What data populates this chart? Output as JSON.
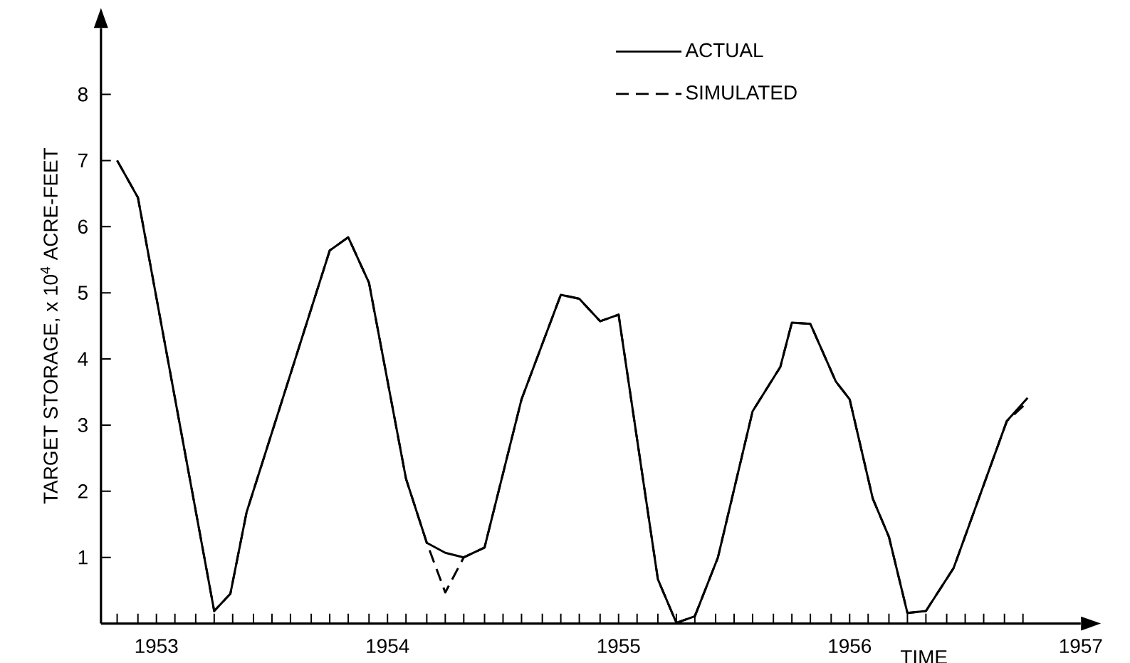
{
  "chart_data": {
    "type": "line",
    "xlabel": "TIME",
    "ylabel": "TARGET STORAGE, x 10$^{4}$ ACRE-FEET",
    "x": [
      1952.83,
      1952.92,
      1953.25,
      1953.32,
      1953.39,
      1953.75,
      1953.83,
      1953.92,
      1954.08,
      1954.17,
      1954.25,
      1954.33,
      1954.42,
      1954.58,
      1954.75,
      1954.83,
      1954.92,
      1955.0,
      1955.17,
      1955.25,
      1955.33,
      1955.43,
      1955.58,
      1955.7,
      1955.75,
      1955.83,
      1955.94,
      1956.0,
      1956.1,
      1956.17,
      1956.25,
      1956.33,
      1956.45,
      1956.68,
      1956.77
    ],
    "series": [
      {
        "name": "ACTUAL",
        "color": "#000000",
        "line_style": "solid",
        "values": [
          7.0,
          6.44,
          0.19,
          0.45,
          1.68,
          5.64,
          5.84,
          5.15,
          2.19,
          1.22,
          1.07,
          1.0,
          1.15,
          3.39,
          4.97,
          4.91,
          4.57,
          4.67,
          0.67,
          0.01,
          0.11,
          1.0,
          3.21,
          3.88,
          4.55,
          4.53,
          3.66,
          3.39,
          1.89,
          1.31,
          0.16,
          0.19,
          0.84,
          3.06,
          3.41
        ]
      },
      {
        "name": "SIMULATED",
        "color": "#000000",
        "line_style": "dashed",
        "values": [
          7.0,
          6.44,
          0.19,
          0.45,
          1.68,
          5.64,
          5.84,
          5.15,
          2.19,
          1.22,
          0.47,
          1.0,
          1.15,
          3.39,
          4.97,
          4.91,
          4.57,
          4.67,
          0.67,
          0.01,
          0.11,
          1.0,
          3.21,
          3.88,
          4.55,
          4.53,
          3.66,
          3.39,
          1.89,
          1.31,
          0.16,
          0.19,
          0.84,
          3.06,
          3.35
        ]
      }
    ],
    "xlim": [
      1952.76,
      1957.0
    ],
    "ylim": [
      0,
      9
    ],
    "yticks": [
      1,
      2,
      3,
      4,
      5,
      6,
      7,
      8
    ],
    "xticks": [
      1953,
      1954,
      1955,
      1956,
      1957,
      {
        "value": 1952.83,
        "label": null
      },
      {
        "value": 1952.92,
        "label": null
      },
      {
        "value": 1953.0,
        "label": null
      },
      {
        "value": 1953.08,
        "label": null
      },
      {
        "value": 1953.17,
        "label": null
      },
      {
        "value": 1953.25,
        "label": null
      },
      {
        "value": 1953.33,
        "label": null
      },
      {
        "value": 1953.42,
        "label": null
      },
      {
        "value": 1953.5,
        "label": null
      },
      {
        "value": 1953.58,
        "label": null
      },
      {
        "value": 1953.67,
        "label": null
      },
      {
        "value": 1953.75,
        "label": null
      },
      {
        "value": 1953.83,
        "label": null
      },
      {
        "value": 1953.92,
        "label": null
      },
      {
        "value": 1954.0,
        "label": null
      },
      {
        "value": 1954.08,
        "label": null
      },
      {
        "value": 1954.17,
        "label": null
      },
      {
        "value": 1954.25,
        "label": null
      },
      {
        "value": 1954.33,
        "label": null
      },
      {
        "value": 1954.42,
        "label": null
      },
      {
        "value": 1954.5,
        "label": null
      },
      {
        "value": 1954.58,
        "label": null
      },
      {
        "value": 1954.67,
        "label": null
      },
      {
        "value": 1954.75,
        "label": null
      },
      {
        "value": 1954.83,
        "label": null
      },
      {
        "value": 1954.92,
        "label": null
      },
      {
        "value": 1955.0,
        "label": null
      },
      {
        "value": 1955.08,
        "label": null
      },
      {
        "value": 1955.17,
        "label": null
      },
      {
        "value": 1955.25,
        "label": null
      },
      {
        "value": 1955.33,
        "label": null
      },
      {
        "value": 1955.42,
        "label": null
      },
      {
        "value": 1955.5,
        "label": null
      },
      {
        "value": 1955.58,
        "label": null
      },
      {
        "value": 1955.67,
        "label": null
      },
      {
        "value": 1955.75,
        "label": null
      },
      {
        "value": 1955.83,
        "label": null
      },
      {
        "value": 1955.92,
        "label": null
      },
      {
        "value": 1956.0,
        "label": null
      },
      {
        "value": 1956.08,
        "label": null
      },
      {
        "value": 1956.17,
        "label": null
      },
      {
        "value": 1956.25,
        "label": null
      },
      {
        "value": 1956.33,
        "label": null
      },
      {
        "value": 1956.42,
        "label": null
      },
      {
        "value": 1956.5,
        "label": null
      },
      {
        "value": 1956.58,
        "label": null
      },
      {
        "value": 1956.67,
        "label": null
      },
      {
        "value": 1956.75,
        "label": null
      }
    ],
    "legend": "top right"
  }
}
